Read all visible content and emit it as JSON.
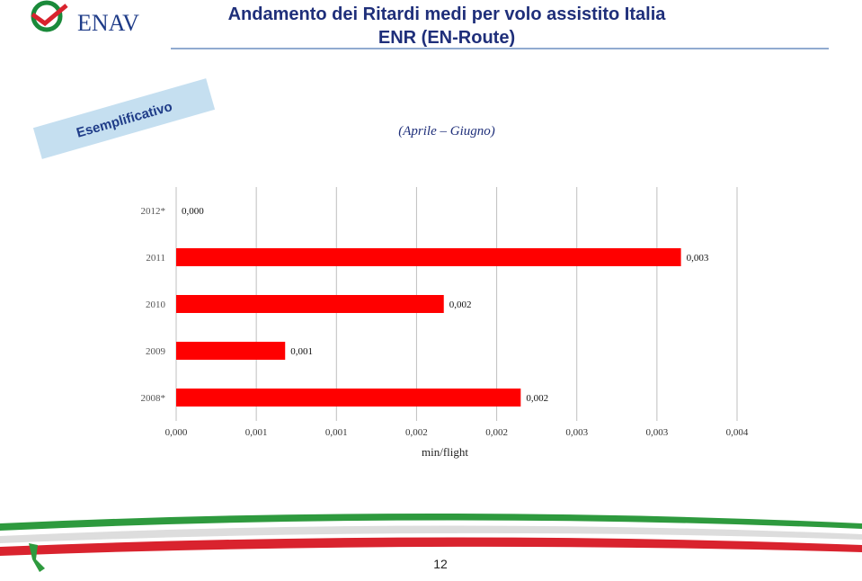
{
  "header": {
    "title": "Andamento dei Ritardi medi per volo assistito Italia",
    "subtitle": "ENR (EN-Route)",
    "logo": "ENAV"
  },
  "badge": "Esemplificativo",
  "chart_data": {
    "type": "bar",
    "orientation": "horizontal",
    "subtitle": "(Aprile – Giugno)",
    "categories": [
      "2012*",
      "2011",
      "2010",
      "2009",
      "2008*"
    ],
    "values": [
      0,
      0.00315,
      0.00167,
      0.00068,
      0.00215
    ],
    "value_labels": [
      "0,000",
      "0,003",
      "0,002",
      "0,001",
      "0,002"
    ],
    "color": "#ff0000",
    "xlabel": "min/flight",
    "xlim": [
      0,
      0.0035
    ],
    "xticks": [
      {
        "value": 0,
        "label": "0,000"
      },
      {
        "value": 0.0005,
        "label": "0,001"
      },
      {
        "value": 0.001,
        "label": "0,001"
      },
      {
        "value": 0.0015,
        "label": "0,002"
      },
      {
        "value": 0.002,
        "label": "0,002"
      },
      {
        "value": 0.0025,
        "label": "0,003"
      },
      {
        "value": 0.003,
        "label": "0,003"
      },
      {
        "value": 0.0035,
        "label": "0,004"
      }
    ],
    "grid": true
  },
  "footer": {
    "page_number": "12"
  }
}
